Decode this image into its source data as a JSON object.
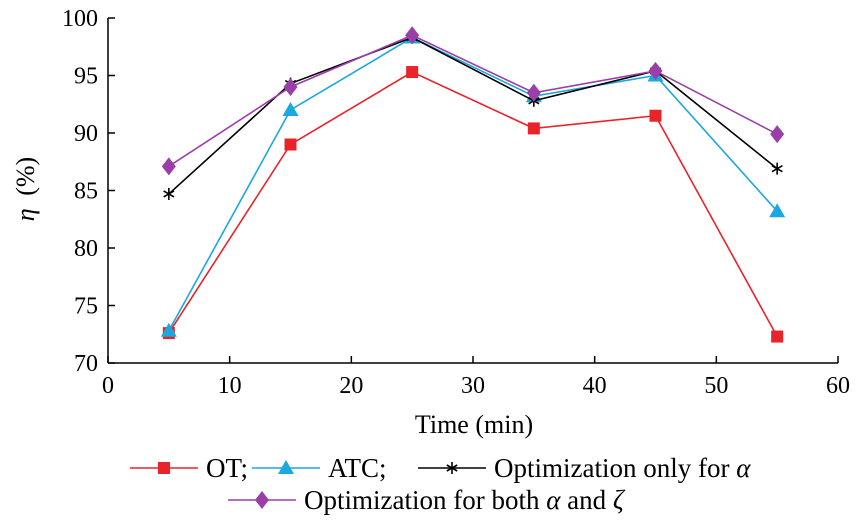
{
  "chart_data": {
    "type": "line",
    "title": "",
    "xlabel": "Time (min)",
    "ylabel_symbol": "η",
    "ylabel_unit": "(%)",
    "xlim": [
      0,
      60
    ],
    "ylim": [
      70,
      100
    ],
    "xticks": [
      0,
      10,
      20,
      30,
      40,
      50,
      60
    ],
    "yticks": [
      70,
      75,
      80,
      85,
      90,
      95,
      100
    ],
    "grid": false,
    "legend_position": "bottom",
    "x": [
      5,
      15,
      25,
      35,
      45,
      55
    ],
    "series": [
      {
        "name": "OT;",
        "legend_main": "OT;",
        "legend_suffix": "",
        "marker": "square",
        "color": "#e8232a",
        "values": [
          72.6,
          89.0,
          95.3,
          90.4,
          91.5,
          72.3
        ]
      },
      {
        "name": "ATC;",
        "legend_main": "ATC;",
        "legend_suffix": "",
        "marker": "triangle",
        "color": "#1aa8e0",
        "values": [
          72.8,
          92.0,
          98.3,
          93.2,
          95.0,
          83.2
        ]
      },
      {
        "name": "Optimization only for α",
        "legend_main": "Optimization only for ",
        "legend_suffix": "α",
        "marker": "asterisk",
        "color": "#000000",
        "values": [
          84.7,
          94.3,
          98.3,
          92.8,
          95.4,
          86.9
        ]
      },
      {
        "name": "Optimization for both α and ζ",
        "legend_main": "Optimization for both ",
        "legend_suffix": "α",
        "legend_main2": " and ",
        "legend_suffix2": "ζ",
        "marker": "diamond",
        "color": "#9a3fa8",
        "values": [
          87.1,
          94.0,
          98.5,
          93.5,
          95.4,
          89.9
        ]
      }
    ]
  }
}
